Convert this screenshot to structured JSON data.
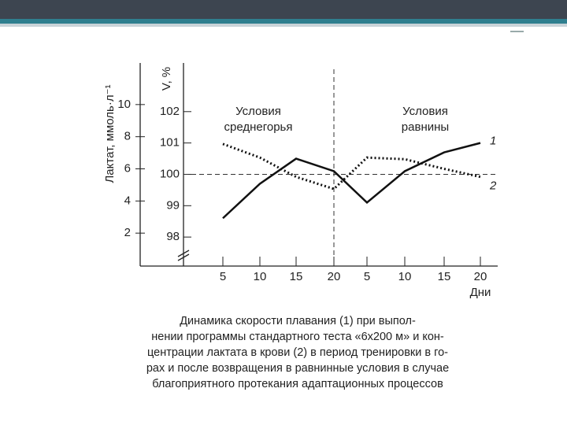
{
  "chart_data": {
    "type": "line",
    "categories": [
      "5",
      "10",
      "15",
      "20",
      "5",
      "10",
      "15",
      "20"
    ],
    "x_label": "Дни",
    "y_label": "Лактат, ммоль·л⁻¹",
    "y2_label": "V, %",
    "ylim": [
      0,
      12
    ],
    "yticks": [
      2,
      4,
      6,
      8,
      10
    ],
    "y2lim": [
      97.1,
      103.25
    ],
    "y2ticks": [
      98,
      99,
      100,
      101,
      102
    ],
    "reference_line": {
      "value": 100,
      "axis": "y2"
    },
    "annotations": [
      "Условия",
      "среднегорья",
      "Условия",
      "равнины"
    ],
    "series": [
      {
        "name": "1",
        "color": "#111111",
        "style": "solid",
        "axis": "y2",
        "values": [
          98.6,
          99.7,
          100.5,
          100.1,
          99.1,
          100.1,
          100.7,
          101.0
        ]
      },
      {
        "name": "2",
        "color": "#111111",
        "style": "dotted",
        "values": [
          7.55,
          6.7,
          5.5,
          4.75,
          6.7,
          6.6,
          6.0,
          5.5
        ]
      }
    ],
    "caption": [
      "Динамика скорости плавания (1) при выпол-",
      "нении программы стандартного теста «6x200 м» и кон-",
      "центрации лактата в крови (2) в период тренировки в го-",
      "рах и после возвращения в равнинные условия в случае",
      "благоприятного протекания адаптационных процессов"
    ]
  }
}
